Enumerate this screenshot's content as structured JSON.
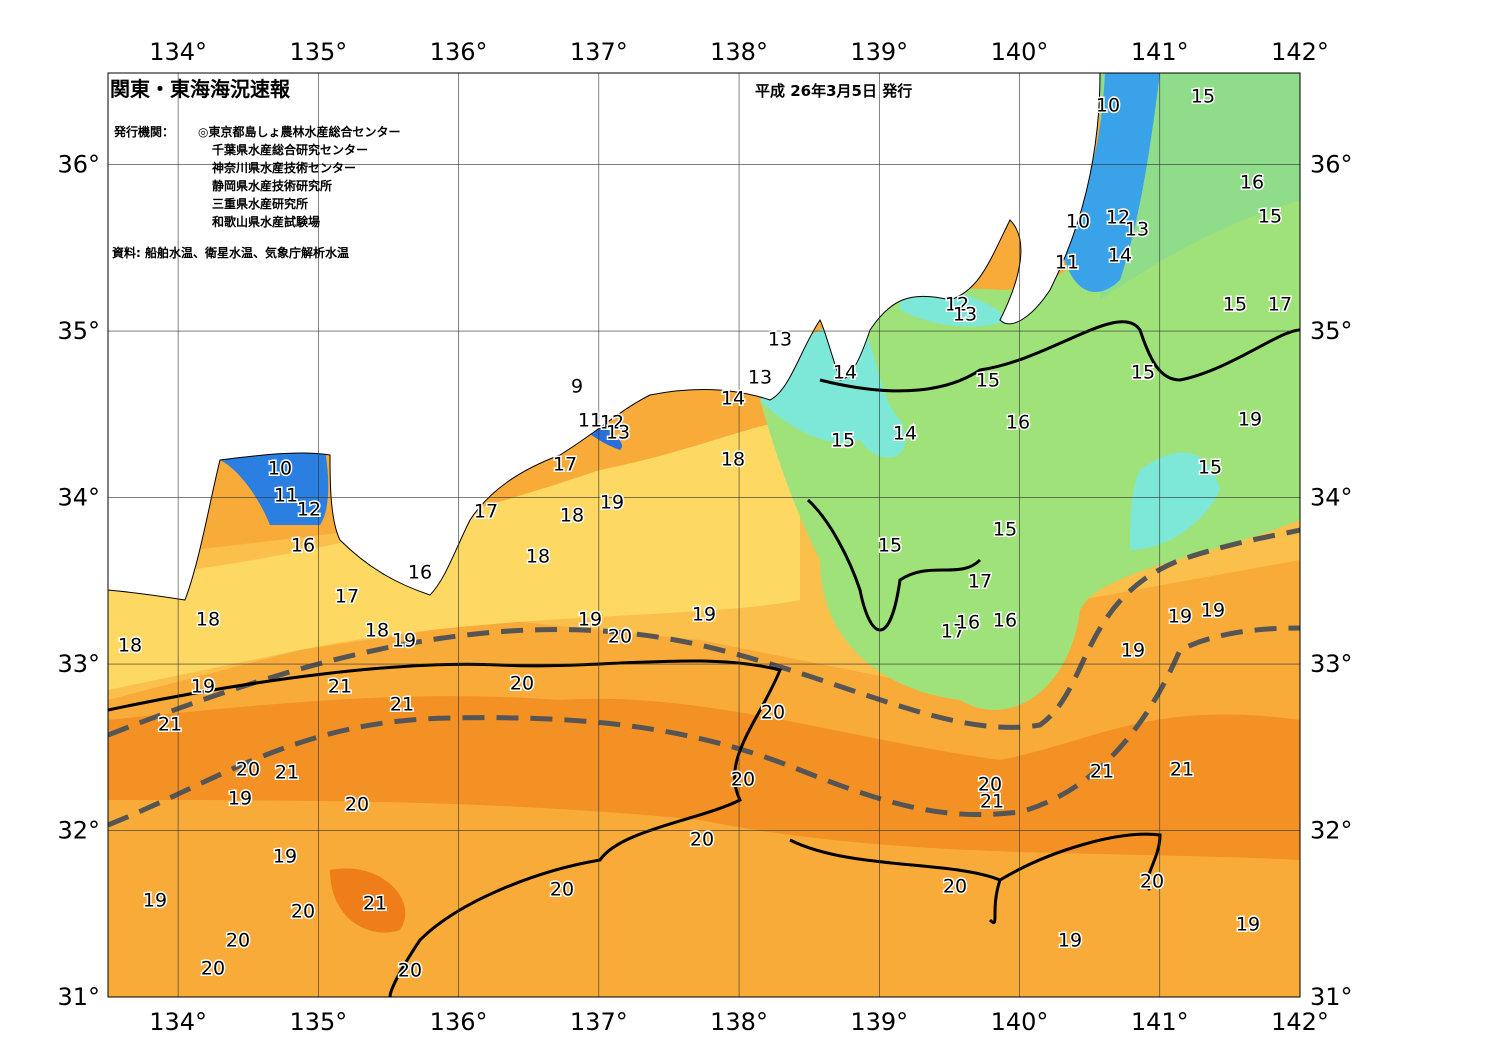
{
  "header": {
    "title": "関東・東海海況速報",
    "date": "平成 26年3月5日 発行"
  },
  "issuers": {
    "label": "発行機関：",
    "items": [
      "◎東京都島しょ農林水産総合センター",
      "千葉県水産総合研究センター",
      "神奈川県水産技術センター",
      "静岡県水産技術研究所",
      "三重県水産研究所",
      "和歌山県水産試験場"
    ]
  },
  "source": "資料: 船舶水温、衛星水温、気象庁解析水温",
  "axes": {
    "lon": {
      "lim": [
        133.5,
        142
      ],
      "ticks": [
        {
          "value": 134,
          "label": "134°"
        },
        {
          "value": 135,
          "label": "135°"
        },
        {
          "value": 136,
          "label": "136°"
        },
        {
          "value": 137,
          "label": "137°"
        },
        {
          "value": 138,
          "label": "138°"
        },
        {
          "value": 139,
          "label": "139°"
        },
        {
          "value": 140,
          "label": "140°"
        },
        {
          "value": 141,
          "label": "141°"
        },
        {
          "value": 142,
          "label": "142°"
        }
      ]
    },
    "lat": {
      "lim": [
        31,
        36.55
      ],
      "ticks": [
        {
          "value": 31,
          "label": "31°"
        },
        {
          "value": 32,
          "label": "32°"
        },
        {
          "value": 33,
          "label": "33°"
        },
        {
          "value": 34,
          "label": "34°"
        },
        {
          "value": 35,
          "label": "35°"
        },
        {
          "value": 36,
          "label": "36°"
        }
      ]
    }
  },
  "contour_labels": [
    10,
    15,
    16,
    15,
    10,
    12,
    13,
    14,
    11,
    15,
    17,
    12,
    13,
    13,
    13,
    14,
    15,
    15,
    9,
    14,
    11,
    12,
    13,
    16,
    19,
    14,
    15,
    18,
    17,
    15,
    10,
    11,
    12,
    19,
    17,
    18,
    15,
    15,
    16,
    18,
    16,
    17,
    17,
    18,
    19,
    19,
    18,
    18,
    19,
    20,
    17,
    16,
    16,
    19,
    19,
    19,
    19,
    21,
    20,
    21,
    20,
    21,
    20,
    21,
    20,
    21,
    21,
    20,
    21,
    19,
    20,
    19,
    20,
    20,
    20,
    20,
    19,
    20,
    21,
    20,
    19,
    19,
    20,
    20
  ]
}
